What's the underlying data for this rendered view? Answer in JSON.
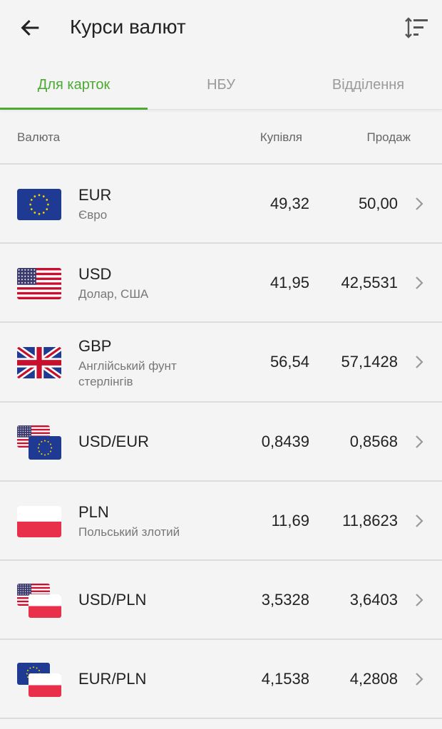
{
  "header": {
    "title": "Курси валют",
    "back_icon": "arrow-left-icon",
    "sort_icon": "sort-icon"
  },
  "tabs": [
    {
      "label": "Для карток",
      "active": true
    },
    {
      "label": "НБУ",
      "active": false
    },
    {
      "label": "Відділення",
      "active": false
    }
  ],
  "accent_color": "#4caa32",
  "columns": {
    "currency": "Валюта",
    "buy": "Купівля",
    "sell": "Продаж"
  },
  "rows": [
    {
      "code": "EUR",
      "name": "Євро",
      "flags": [
        "eu"
      ],
      "buy": "49,32",
      "sell": "50,00"
    },
    {
      "code": "USD",
      "name": "Долар, США",
      "flags": [
        "us"
      ],
      "buy": "41,95",
      "sell": "42,5531"
    },
    {
      "code": "GBP",
      "name": "Англійський фунт стерлінгів",
      "flags": [
        "gb"
      ],
      "buy": "56,54",
      "sell": "57,1428"
    },
    {
      "code": "USD/EUR",
      "name": "",
      "flags": [
        "us",
        "eu"
      ],
      "buy": "0,8439",
      "sell": "0,8568"
    },
    {
      "code": "PLN",
      "name": "Польський злотий",
      "flags": [
        "pl"
      ],
      "buy": "11,69",
      "sell": "11,8623"
    },
    {
      "code": "USD/PLN",
      "name": "",
      "flags": [
        "us",
        "pl"
      ],
      "buy": "3,5328",
      "sell": "3,6403"
    },
    {
      "code": "EUR/PLN",
      "name": "",
      "flags": [
        "eu",
        "pl"
      ],
      "buy": "4,1538",
      "sell": "4,2808"
    }
  ]
}
